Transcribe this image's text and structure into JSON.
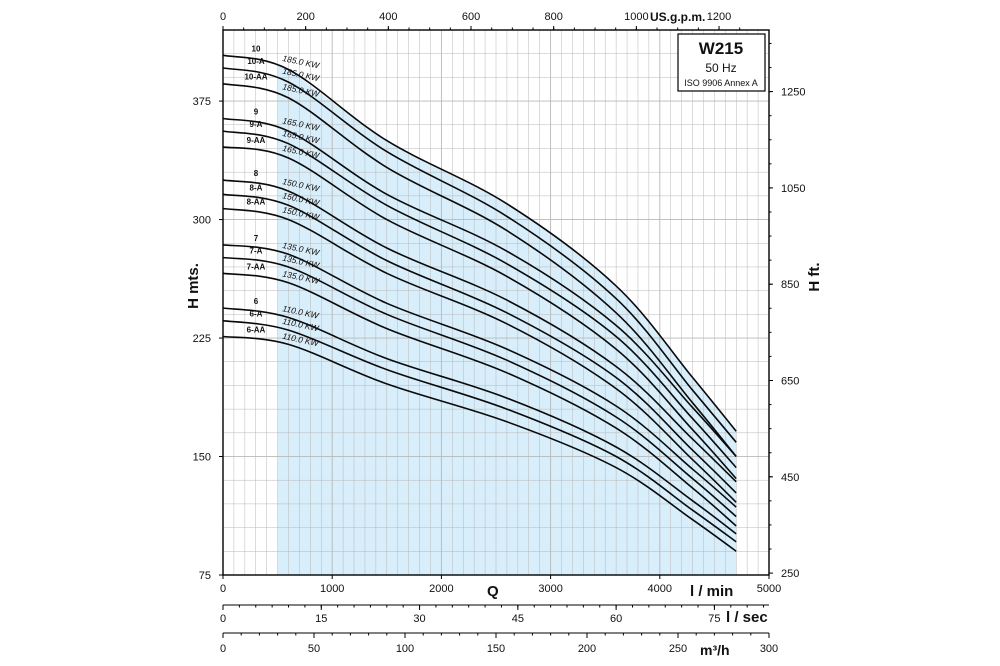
{
  "chart_data": {
    "type": "line",
    "title_box": {
      "model": "W215",
      "freq": "50 Hz",
      "standard": "ISO 9906 Annex A"
    },
    "axes": {
      "bottom": {
        "label": "l / min",
        "q_label": "Q",
        "ticks": [
          "0",
          "1000",
          "2000",
          "3000",
          "4000",
          "5000"
        ],
        "range": [
          0,
          5000
        ]
      },
      "top": {
        "label": "US.g.p.m.",
        "ticks": [
          "0",
          "200",
          "400",
          "600",
          "800",
          "1000",
          "1200"
        ]
      },
      "left": {
        "label": "H mts.",
        "ticks": [
          "75",
          "150",
          "225",
          "300",
          "375"
        ],
        "range": [
          75,
          420
        ]
      },
      "right": {
        "label": "H ft.",
        "ticks": [
          "250",
          "450",
          "650",
          "850",
          "1050",
          "1250"
        ]
      },
      "lsec": {
        "label": "l / sec",
        "ticks": [
          "0",
          "15",
          "30",
          "45",
          "60",
          "75"
        ]
      },
      "m3h": {
        "label": "m³/h",
        "ticks": [
          "0",
          "50",
          "100",
          "150",
          "200",
          "250",
          "300"
        ]
      }
    },
    "operating_range": [
      500,
      4700
    ],
    "grid": true,
    "series": [
      {
        "name": "10",
        "power": "185.0 KW",
        "x": [
          0,
          600,
          1500,
          2600,
          3600,
          4300,
          4700
        ],
        "y": [
          404,
          395,
          350,
          310,
          258,
          200,
          166
        ]
      },
      {
        "name": "10-A",
        "power": "185.0 KW",
        "x": [
          0,
          600,
          1500,
          2600,
          3600,
          4300,
          4700
        ],
        "y": [
          396,
          387,
          343,
          302,
          250,
          192,
          159
        ]
      },
      {
        "name": "10-AA",
        "power": "185.0 KW",
        "x": [
          0,
          600,
          1500,
          2600,
          3600,
          4300,
          4700
        ],
        "y": [
          386,
          377,
          333,
          293,
          241,
          184,
          150
        ]
      },
      {
        "name": "9",
        "power": "165.0 KW",
        "x": [
          0,
          600,
          1500,
          2600,
          3600,
          4300,
          4700
        ],
        "y": [
          364,
          356,
          316,
          280,
          233,
          181,
          150
        ]
      },
      {
        "name": "9-A",
        "power": "165.0 KW",
        "x": [
          0,
          600,
          1500,
          2600,
          3600,
          4300,
          4700
        ],
        "y": [
          356,
          348,
          309,
          272,
          226,
          174,
          143
        ]
      },
      {
        "name": "9-AA",
        "power": "165.0 KW",
        "x": [
          0,
          600,
          1500,
          2600,
          3600,
          4300,
          4700
        ],
        "y": [
          346,
          339,
          300,
          264,
          218,
          167,
          136
        ]
      },
      {
        "name": "8",
        "power": "150.0 KW",
        "x": [
          0,
          600,
          1500,
          2600,
          3600,
          4300,
          4700
        ],
        "y": [
          325,
          318,
          282,
          249,
          207,
          161,
          134
        ]
      },
      {
        "name": "8-A",
        "power": "150.0 KW",
        "x": [
          0,
          600,
          1500,
          2600,
          3600,
          4300,
          4700
        ],
        "y": [
          316,
          309,
          274,
          241,
          200,
          154,
          127
        ]
      },
      {
        "name": "8-AA",
        "power": "150.0 KW",
        "x": [
          0,
          600,
          1500,
          2600,
          3600,
          4300,
          4700
        ],
        "y": [
          307,
          300,
          266,
          234,
          193,
          148,
          121
        ]
      },
      {
        "name": "7",
        "power": "135.0 KW",
        "x": [
          0,
          600,
          1500,
          2600,
          3600,
          4300,
          4700
        ],
        "y": [
          284,
          278,
          247,
          218,
          182,
          142,
          118
        ]
      },
      {
        "name": "7-A",
        "power": "135.0 KW",
        "x": [
          0,
          600,
          1500,
          2600,
          3600,
          4300,
          4700
        ],
        "y": [
          276,
          270,
          240,
          211,
          175,
          136,
          112
        ]
      },
      {
        "name": "7-AA",
        "power": "135.0 KW",
        "x": [
          0,
          600,
          1500,
          2600,
          3600,
          4300,
          4700
        ],
        "y": [
          266,
          260,
          231,
          203,
          168,
          130,
          106
        ]
      },
      {
        "name": "6",
        "power": "110.0 KW",
        "x": [
          0,
          600,
          1500,
          2600,
          3600,
          4300,
          4700
        ],
        "y": [
          244,
          238,
          212,
          187,
          156,
          122,
          101
        ]
      },
      {
        "name": "6-A",
        "power": "110.0 KW",
        "x": [
          0,
          600,
          1500,
          2600,
          3600,
          4300,
          4700
        ],
        "y": [
          236,
          230,
          205,
          180,
          150,
          116,
          96
        ]
      },
      {
        "name": "6-AA",
        "power": "110.0 KW",
        "x": [
          0,
          600,
          1500,
          2600,
          3600,
          4300,
          4700
        ],
        "y": [
          226,
          221,
          196,
          172,
          143,
          110,
          90
        ]
      }
    ]
  },
  "colors": {
    "fill": "#d8eefb",
    "curve": "#0a0a0a",
    "grid": "#b8b8b8",
    "frame": "#000000"
  }
}
